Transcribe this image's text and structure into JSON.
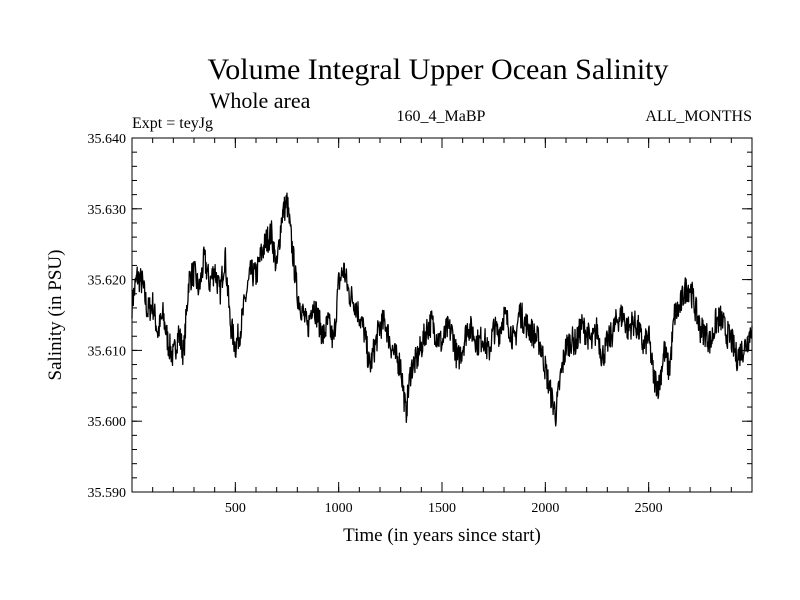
{
  "chart_data": {
    "type": "line",
    "title": "Volume Integral Upper Ocean Salinity",
    "subtitle": "Whole area",
    "header_left": "Expt = teyJg",
    "header_center": "160_4_MaBP",
    "header_right": "ALL_MONTHS",
    "xlabel": "Time (in years since start)",
    "ylabel": "Salinity (in PSU)",
    "xlim": [
      0,
      3000
    ],
    "ylim": [
      35.59,
      35.64
    ],
    "x_ticks": [
      500,
      1000,
      1500,
      2000,
      2500
    ],
    "x_tick_labels": [
      "500",
      "1000",
      "1500",
      "2000",
      "2500"
    ],
    "y_ticks": [
      35.59,
      35.6,
      35.61,
      35.62,
      35.63,
      35.64
    ],
    "y_tick_labels": [
      "35.590",
      "35.600",
      "35.610",
      "35.620",
      "35.630",
      "35.640"
    ],
    "x_minor_step": 100,
    "y_minor_step": 0.002,
    "line_color": "#000000",
    "series": [
      {
        "name": "salinity",
        "x": [
          0,
          25,
          50,
          75,
          100,
          125,
          150,
          175,
          200,
          225,
          250,
          275,
          300,
          325,
          350,
          375,
          400,
          425,
          450,
          475,
          500,
          525,
          550,
          575,
          600,
          625,
          650,
          675,
          700,
          725,
          750,
          775,
          800,
          825,
          850,
          875,
          900,
          925,
          950,
          975,
          1000,
          1025,
          1050,
          1075,
          1100,
          1125,
          1150,
          1175,
          1200,
          1225,
          1250,
          1275,
          1300,
          1325,
          1350,
          1375,
          1400,
          1425,
          1450,
          1475,
          1500,
          1525,
          1550,
          1575,
          1600,
          1625,
          1650,
          1675,
          1700,
          1725,
          1750,
          1775,
          1800,
          1825,
          1850,
          1875,
          1900,
          1925,
          1950,
          1975,
          2000,
          2025,
          2050,
          2075,
          2100,
          2125,
          2150,
          2175,
          2200,
          2225,
          2250,
          2275,
          2300,
          2325,
          2350,
          2375,
          2400,
          2425,
          2450,
          2475,
          2500,
          2525,
          2550,
          2575,
          2600,
          2625,
          2650,
          2675,
          2700,
          2725,
          2750,
          2775,
          2800,
          2825,
          2850,
          2875,
          2900,
          2925,
          2950,
          2975,
          3000
        ],
        "values": [
          35.6165,
          35.6205,
          35.6195,
          35.6155,
          35.6165,
          35.6125,
          35.615,
          35.611,
          35.609,
          35.6125,
          35.6095,
          35.62,
          35.621,
          35.6185,
          35.623,
          35.6195,
          35.6215,
          35.618,
          35.6235,
          35.614,
          35.6105,
          35.613,
          35.6175,
          35.621,
          35.6205,
          35.6235,
          35.6255,
          35.6265,
          35.6215,
          35.629,
          35.631,
          35.6245,
          35.618,
          35.6155,
          35.613,
          35.617,
          35.6145,
          35.612,
          35.614,
          35.611,
          35.6195,
          35.6215,
          35.618,
          35.617,
          35.615,
          35.6125,
          35.6075,
          35.6105,
          35.6135,
          35.614,
          35.611,
          35.609,
          35.608,
          35.601,
          35.6075,
          35.6085,
          35.6105,
          35.613,
          35.614,
          35.612,
          35.611,
          35.613,
          35.6125,
          35.6085,
          35.6105,
          35.6135,
          35.6125,
          35.611,
          35.612,
          35.6095,
          35.613,
          35.6125,
          35.615,
          35.6135,
          35.611,
          35.6155,
          35.614,
          35.613,
          35.612,
          35.611,
          35.6075,
          35.604,
          35.601,
          35.6065,
          35.6105,
          35.6115,
          35.611,
          35.6135,
          35.6125,
          35.611,
          35.613,
          35.609,
          35.611,
          35.6125,
          35.6145,
          35.615,
          35.613,
          35.614,
          35.613,
          35.6105,
          35.612,
          35.606,
          35.605,
          35.61,
          35.607,
          35.615,
          35.616,
          35.6185,
          35.619,
          35.616,
          35.613,
          35.6125,
          35.611,
          35.614,
          35.6145,
          35.6125,
          35.6115,
          35.609,
          35.61,
          35.611,
          35.6135
        ]
      }
    ]
  }
}
